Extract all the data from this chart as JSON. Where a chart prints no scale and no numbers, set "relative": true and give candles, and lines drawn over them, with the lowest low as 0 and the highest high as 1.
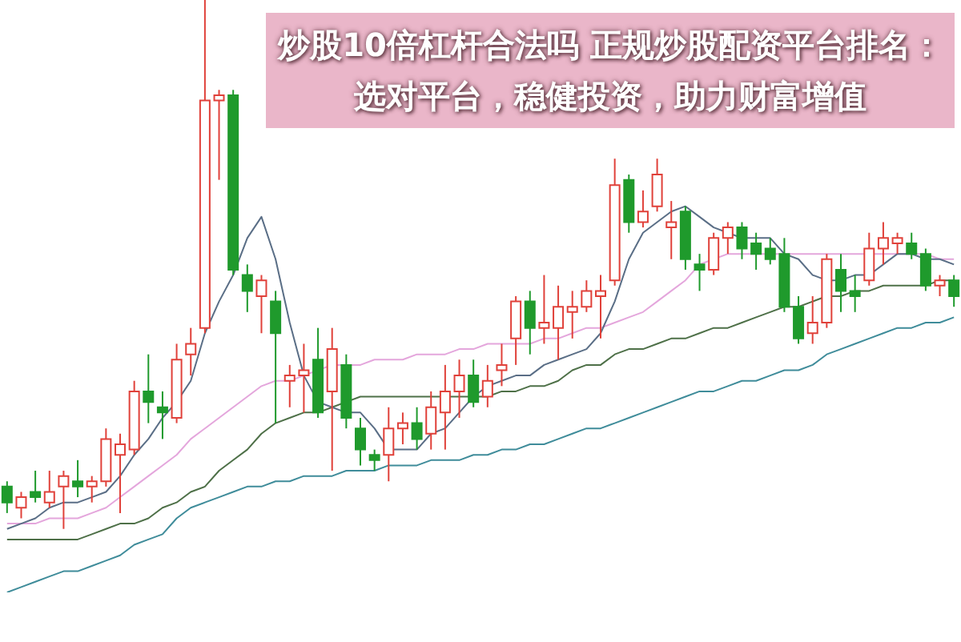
{
  "chart_data": {
    "type": "candlestick",
    "title": "炒股10倍杠杆合法吗 正规炒股配资平台排名：选对平台，稳健投资，助力财富增值",
    "relative": true,
    "categories": [
      null,
      null,
      null,
      null,
      null,
      null,
      null,
      null,
      null,
      null,
      null,
      null,
      null,
      null,
      null,
      null,
      null,
      null,
      null,
      null,
      null,
      null,
      null,
      null,
      null,
      null,
      null,
      null,
      null,
      null,
      null,
      null,
      null,
      null,
      null,
      null,
      null,
      null,
      null,
      null,
      null,
      null,
      null,
      null,
      null,
      null,
      null,
      null,
      null,
      null,
      null,
      null,
      null,
      null,
      null,
      null,
      null,
      null,
      null,
      null,
      null,
      null,
      null,
      null,
      null,
      null,
      null,
      null
    ],
    "ohlc": [
      [
        0.08,
        0.09,
        0.03,
        0.05
      ],
      [
        0.04,
        0.07,
        0.02,
        0.06
      ],
      [
        0.07,
        0.11,
        0.05,
        0.06
      ],
      [
        0.05,
        0.11,
        0.04,
        0.07
      ],
      [
        0.08,
        0.11,
        0,
        0.1
      ],
      [
        0.09,
        0.13,
        0.06,
        0.08
      ],
      [
        0.08,
        0.1,
        0.05,
        0.09
      ],
      [
        0.09,
        0.19,
        0.08,
        0.17
      ],
      [
        0.14,
        0.18,
        0.03,
        0.16
      ],
      [
        0.15,
        0.28,
        0.14,
        0.26
      ],
      [
        0.26,
        0.33,
        0.2,
        0.24
      ],
      [
        0.23,
        0.26,
        0.17,
        0.22
      ],
      [
        0.21,
        0.35,
        0.2,
        0.32
      ],
      [
        0.33,
        0.38,
        0.29,
        0.35
      ],
      [
        0.38,
        1,
        0.37,
        0.81
      ],
      [
        0.81,
        0.83,
        0.66,
        0.82
      ],
      [
        0.82,
        0.83,
        0.48,
        0.49
      ],
      [
        0.48,
        0.5,
        0.41,
        0.45
      ],
      [
        0.44,
        0.48,
        0.37,
        0.47
      ],
      [
        0.43,
        0.45,
        0.2,
        0.37
      ],
      [
        0.28,
        0.31,
        0.23,
        0.29
      ],
      [
        0.29,
        0.35,
        0.22,
        0.3
      ],
      [
        0.32,
        0.38,
        0.21,
        0.22
      ],
      [
        0.26,
        0.38,
        0.11,
        0.34
      ],
      [
        0.31,
        0.33,
        0.19,
        0.21
      ],
      [
        0.19,
        0.21,
        0.12,
        0.15
      ],
      [
        0.14,
        0.15,
        0.11,
        0.13
      ],
      [
        0.14,
        0.23,
        0.09,
        0.19
      ],
      [
        0.19,
        0.22,
        0.16,
        0.2
      ],
      [
        0.2,
        0.23,
        0.15,
        0.17
      ],
      [
        0.18,
        0.26,
        0.15,
        0.23
      ],
      [
        0.22,
        0.31,
        0.15,
        0.26
      ],
      [
        0.26,
        0.32,
        0.21,
        0.29
      ],
      [
        0.29,
        0.32,
        0.23,
        0.24
      ],
      [
        0.25,
        0.31,
        0.23,
        0.28
      ],
      [
        0.3,
        0.35,
        0.27,
        0.31
      ],
      [
        0.36,
        0.44,
        0.31,
        0.43
      ],
      [
        0.43,
        0.45,
        0.33,
        0.38
      ],
      [
        0.38,
        0.48,
        0.35,
        0.39
      ],
      [
        0.38,
        0.46,
        0.32,
        0.42
      ],
      [
        0.41,
        0.45,
        0.36,
        0.42
      ],
      [
        0.42,
        0.47,
        0.41,
        0.45
      ],
      [
        0.44,
        0.48,
        0.36,
        0.45
      ],
      [
        0.47,
        0.7,
        0.46,
        0.65
      ],
      [
        0.66,
        0.67,
        0.56,
        0.58
      ],
      [
        0.58,
        0.64,
        0.57,
        0.6
      ],
      [
        0.61,
        0.7,
        0.6,
        0.67
      ],
      [
        0.57,
        0.62,
        0.51,
        0.58
      ],
      [
        0.6,
        0.61,
        0.49,
        0.51
      ],
      [
        0.5,
        0.52,
        0.45,
        0.49
      ],
      [
        0.49,
        0.56,
        0.48,
        0.55
      ],
      [
        0.55,
        0.58,
        0.52,
        0.57
      ],
      [
        0.57,
        0.58,
        0.51,
        0.53
      ],
      [
        0.54,
        0.56,
        0.49,
        0.52
      ],
      [
        0.53,
        0.55,
        0.5,
        0.51
      ],
      [
        0.52,
        0.55,
        0.41,
        0.42
      ],
      [
        0.42,
        0.44,
        0.35,
        0.36
      ],
      [
        0.37,
        0.44,
        0.35,
        0.39
      ],
      [
        0.39,
        0.52,
        0.38,
        0.51
      ],
      [
        0.49,
        0.52,
        0.41,
        0.45
      ],
      [
        0.45,
        0.48,
        0.41,
        0.44
      ],
      [
        0.47,
        0.56,
        0.46,
        0.53
      ],
      [
        0.53,
        0.58,
        0.5,
        0.55
      ],
      [
        0.54,
        0.56,
        0.52,
        0.55
      ],
      [
        0.54,
        0.56,
        0.51,
        0.52
      ],
      [
        0.52,
        0.53,
        0.45,
        0.46
      ],
      [
        0.46,
        0.48,
        0.44,
        0.47
      ],
      [
        0.47,
        0.48,
        0.42,
        0.44
      ]
    ],
    "series": [
      {
        "type": "line",
        "color": "#3f8c9a",
        "values": [
          -0.12,
          -0.11,
          -0.1,
          -0.09,
          -0.08,
          -0.08,
          -0.07,
          -0.06,
          -0.05,
          -0.03,
          -0.02,
          -0.01,
          0.02,
          0.04,
          0.05,
          0.06,
          0.07,
          0.08,
          0.08,
          0.09,
          0.09,
          0.1,
          0.1,
          0.1,
          0.11,
          0.11,
          0.11,
          0.12,
          0.12,
          0.12,
          0.13,
          0.13,
          0.13,
          0.14,
          0.14,
          0.15,
          0.15,
          0.16,
          0.16,
          0.17,
          0.18,
          0.19,
          0.19,
          0.2,
          0.21,
          0.22,
          0.23,
          0.24,
          0.25,
          0.26,
          0.26,
          0.27,
          0.28,
          0.28,
          0.29,
          0.3,
          0.3,
          0.31,
          0.33,
          0.34,
          0.35,
          0.36,
          0.37,
          0.38,
          0.38,
          0.39,
          0.39,
          0.4
        ]
      },
      {
        "type": "line",
        "color": "#4e7048",
        "values": [
          -0.02,
          -0.02,
          -0.02,
          -0.02,
          -0.02,
          -0.02,
          -0.01,
          0,
          0.01,
          0.01,
          0.02,
          0.04,
          0.05,
          0.07,
          0.08,
          0.11,
          0.13,
          0.15,
          0.18,
          0.2,
          0.21,
          0.22,
          0.22,
          0.23,
          0.24,
          0.25,
          0.25,
          0.25,
          0.25,
          0.25,
          0.25,
          0.25,
          0.25,
          0.25,
          0.25,
          0.26,
          0.26,
          0.27,
          0.27,
          0.28,
          0.3,
          0.31,
          0.31,
          0.33,
          0.34,
          0.34,
          0.35,
          0.36,
          0.36,
          0.37,
          0.38,
          0.38,
          0.39,
          0.4,
          0.41,
          0.42,
          0.42,
          0.43,
          0.44,
          0.44,
          0.45,
          0.45,
          0.46,
          0.46,
          0.46,
          0.46,
          0.47,
          0.47
        ]
      },
      {
        "type": "line",
        "color": "#e4a6dc",
        "values": [
          0.01,
          0.01,
          0.01,
          0.02,
          0.02,
          0.02,
          0.03,
          0.04,
          0.06,
          0.08,
          0.1,
          0.12,
          0.14,
          0.17,
          0.19,
          0.21,
          0.23,
          0.25,
          0.27,
          0.28,
          0.28,
          0.29,
          0.3,
          0.31,
          0.31,
          0.31,
          0.32,
          0.32,
          0.32,
          0.33,
          0.33,
          0.33,
          0.34,
          0.34,
          0.35,
          0.35,
          0.35,
          0.35,
          0.36,
          0.36,
          0.37,
          0.38,
          0.38,
          0.39,
          0.4,
          0.41,
          0.43,
          0.45,
          0.47,
          0.5,
          0.51,
          0.52,
          0.52,
          0.52,
          0.52,
          0.52,
          0.52,
          0.52,
          0.52,
          0.52,
          0.52,
          0.52,
          0.52,
          0.52,
          0.52,
          0.52,
          0.51,
          0.51
        ]
      },
      {
        "type": "line",
        "color": "#5a6e86",
        "values": [
          0,
          0.01,
          0.02,
          0.04,
          0.05,
          0.05,
          0.06,
          0.07,
          0.1,
          0.14,
          0.17,
          0.21,
          0.24,
          0.28,
          0.37,
          0.43,
          0.48,
          0.55,
          0.59,
          0.51,
          0.39,
          0.29,
          0.24,
          0.23,
          0.22,
          0.22,
          0.19,
          0.15,
          0.15,
          0.15,
          0.18,
          0.19,
          0.22,
          0.25,
          0.27,
          0.28,
          0.29,
          0.29,
          0.31,
          0.32,
          0.33,
          0.34,
          0.37,
          0.43,
          0.51,
          0.56,
          0.58,
          0.6,
          0.61,
          0.59,
          0.57,
          0.56,
          0.55,
          0.55,
          0.55,
          0.52,
          0.51,
          0.48,
          0.47,
          0.47,
          0.48,
          0.48,
          0.5,
          0.52,
          0.52,
          0.51,
          0.51,
          0.5
        ]
      }
    ]
  }
}
